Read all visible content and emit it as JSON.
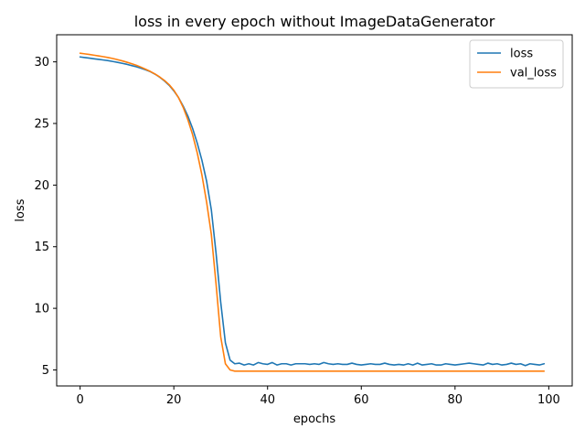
{
  "chart_data": {
    "type": "line",
    "title": "loss in every epoch without ImageDataGenerator",
    "xlabel": "epochs",
    "ylabel": "loss",
    "xlim": [
      -5,
      105
    ],
    "ylim": [
      3.7,
      32.2
    ],
    "xticks": [
      0,
      20,
      40,
      60,
      80,
      100
    ],
    "yticks": [
      5,
      10,
      15,
      20,
      25,
      30
    ],
    "grid": false,
    "legend_position": "top-right",
    "series": [
      {
        "name": "loss",
        "color": "#1f77b4",
        "x": [
          0,
          1,
          2,
          3,
          4,
          5,
          6,
          7,
          8,
          9,
          10,
          11,
          12,
          13,
          14,
          15,
          16,
          17,
          18,
          19,
          20,
          21,
          22,
          23,
          24,
          25,
          26,
          27,
          28,
          29,
          30,
          31,
          32,
          33,
          34,
          35,
          36,
          37,
          38,
          39,
          40,
          41,
          42,
          43,
          44,
          45,
          46,
          47,
          48,
          49,
          50,
          51,
          52,
          53,
          54,
          55,
          56,
          57,
          58,
          59,
          60,
          61,
          62,
          63,
          64,
          65,
          66,
          67,
          68,
          69,
          70,
          71,
          72,
          73,
          74,
          75,
          76,
          77,
          78,
          79,
          80,
          81,
          82,
          83,
          84,
          85,
          86,
          87,
          88,
          89,
          90,
          91,
          92,
          93,
          94,
          95,
          96,
          97,
          98,
          99
        ],
        "values": [
          30.4,
          30.35,
          30.3,
          30.25,
          30.2,
          30.15,
          30.1,
          30.03,
          29.96,
          29.88,
          29.8,
          29.7,
          29.6,
          29.48,
          29.35,
          29.2,
          29.0,
          28.75,
          28.45,
          28.1,
          27.65,
          27.1,
          26.4,
          25.6,
          24.6,
          23.4,
          22.0,
          20.3,
          18.0,
          14.5,
          10.5,
          7.2,
          5.8,
          5.5,
          5.55,
          5.4,
          5.5,
          5.4,
          5.6,
          5.5,
          5.45,
          5.6,
          5.4,
          5.5,
          5.5,
          5.4,
          5.5,
          5.5,
          5.5,
          5.45,
          5.5,
          5.45,
          5.6,
          5.5,
          5.45,
          5.5,
          5.45,
          5.45,
          5.55,
          5.45,
          5.4,
          5.45,
          5.5,
          5.45,
          5.45,
          5.55,
          5.45,
          5.4,
          5.45,
          5.4,
          5.5,
          5.4,
          5.55,
          5.4,
          5.45,
          5.5,
          5.4,
          5.4,
          5.5,
          5.45,
          5.4,
          5.45,
          5.5,
          5.55,
          5.5,
          5.45,
          5.4,
          5.55,
          5.45,
          5.5,
          5.4,
          5.45,
          5.55,
          5.45,
          5.5,
          5.35,
          5.5,
          5.45,
          5.4,
          5.5
        ]
      },
      {
        "name": "val_loss",
        "color": "#ff7f0e",
        "x": [
          0,
          1,
          2,
          3,
          4,
          5,
          6,
          7,
          8,
          9,
          10,
          11,
          12,
          13,
          14,
          15,
          16,
          17,
          18,
          19,
          20,
          21,
          22,
          23,
          24,
          25,
          26,
          27,
          28,
          29,
          30,
          31,
          32,
          33,
          34,
          35,
          36,
          37,
          38,
          39,
          40,
          41,
          42,
          43,
          44,
          45,
          46,
          47,
          48,
          49,
          50,
          51,
          52,
          53,
          54,
          55,
          56,
          57,
          58,
          59,
          60,
          61,
          62,
          63,
          64,
          65,
          66,
          67,
          68,
          69,
          70,
          71,
          72,
          73,
          74,
          75,
          76,
          77,
          78,
          79,
          80,
          81,
          82,
          83,
          84,
          85,
          86,
          87,
          88,
          89,
          90,
          91,
          92,
          93,
          94,
          95,
          96,
          97,
          98,
          99
        ],
        "values": [
          30.7,
          30.65,
          30.6,
          30.54,
          30.48,
          30.42,
          30.35,
          30.27,
          30.18,
          30.08,
          29.97,
          29.85,
          29.72,
          29.57,
          29.4,
          29.22,
          29.01,
          28.77,
          28.49,
          28.15,
          27.7,
          27.1,
          26.3,
          25.3,
          24.1,
          22.6,
          20.8,
          18.6,
          16.0,
          12.0,
          7.7,
          5.5,
          5.0,
          4.9,
          4.9,
          4.9,
          4.9,
          4.9,
          4.9,
          4.9,
          4.9,
          4.9,
          4.9,
          4.9,
          4.9,
          4.9,
          4.9,
          4.9,
          4.9,
          4.9,
          4.9,
          4.9,
          4.9,
          4.9,
          4.9,
          4.9,
          4.9,
          4.9,
          4.9,
          4.9,
          4.9,
          4.9,
          4.9,
          4.9,
          4.9,
          4.9,
          4.9,
          4.9,
          4.9,
          4.9,
          4.9,
          4.9,
          4.9,
          4.9,
          4.9,
          4.9,
          4.9,
          4.9,
          4.9,
          4.9,
          4.9,
          4.9,
          4.9,
          4.9,
          4.9,
          4.9,
          4.9,
          4.9,
          4.9,
          4.9,
          4.9,
          4.9,
          4.9,
          4.9,
          4.9,
          4.9,
          4.9,
          4.9,
          4.9,
          4.9
        ]
      }
    ]
  }
}
